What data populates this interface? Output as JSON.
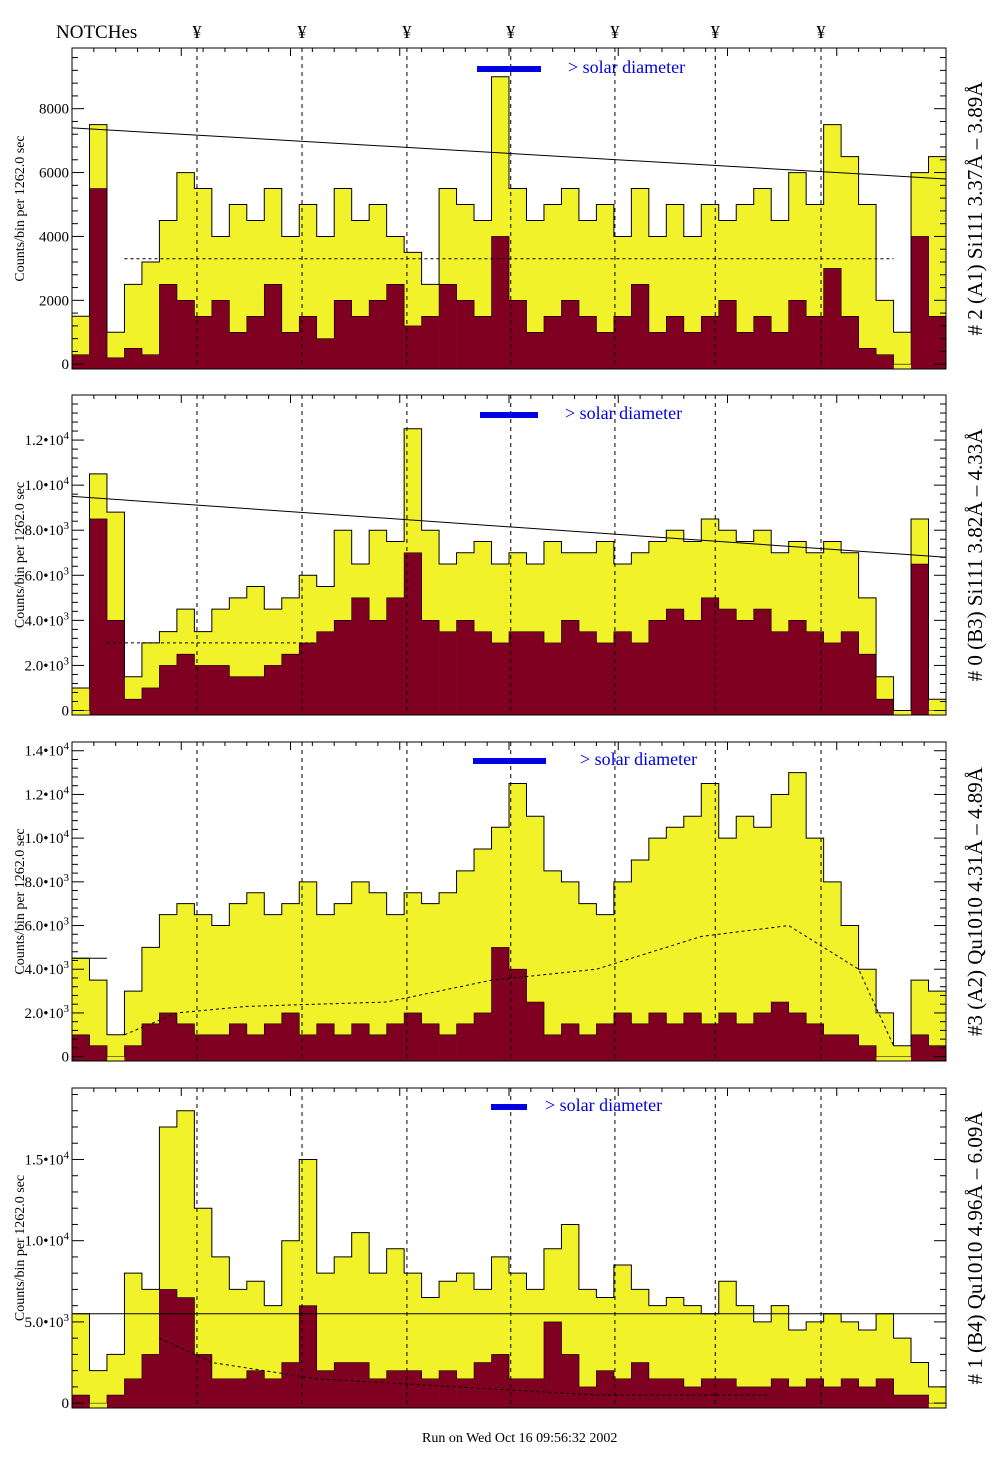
{
  "header": {
    "notches_label": "NOTCHes",
    "notch_symbol": "¥"
  },
  "footer": {
    "run_text": "Run on Wed Oct 16 09:56:32 2002"
  },
  "colors": {
    "total": "#f2f22a",
    "component": "#7f0020",
    "legend_bar": "#0000e0",
    "outline": "#000000"
  },
  "chart_data": [
    {
      "type": "bar",
      "title": "# 2 (A1) Si111  3.37Å – 3.89Å",
      "ylabel": "Counts/bin per   1262.0 sec",
      "legend": "> solar diameter",
      "ylim": [
        -150,
        9900
      ],
      "yticks": [
        {
          "v": 0,
          "l": "0"
        },
        {
          "v": 2000,
          "l": "2000"
        },
        {
          "v": 4000,
          "l": "4000"
        },
        {
          "v": 6000,
          "l": "6000"
        },
        {
          "v": 8000,
          "l": "8000"
        }
      ],
      "notches": [
        7.15,
        13.16,
        19.16,
        25.1,
        31.06,
        36.8,
        42.85
      ],
      "total": [
        1500,
        7500,
        1000,
        2500,
        3200,
        4500,
        6000,
        5500,
        4000,
        5000,
        4500,
        5500,
        4000,
        5000,
        4000,
        5500,
        4500,
        5000,
        4000,
        3500,
        2500,
        5500,
        5000,
        4500,
        9000,
        5500,
        4500,
        5000,
        5500,
        4500,
        5000,
        4000,
        5500,
        4000,
        5000,
        4000,
        5000,
        4500,
        5000,
        5500,
        4500,
        6000,
        5000,
        7500,
        6500,
        5000,
        2000,
        1000,
        6000,
        6500
      ],
      "component": [
        300,
        5500,
        200,
        500,
        300,
        2500,
        2000,
        1500,
        2000,
        1000,
        1500,
        2500,
        1000,
        1500,
        800,
        2000,
        1500,
        2000,
        2500,
        1200,
        1500,
        2500,
        2000,
        1500,
        4000,
        2000,
        1000,
        1500,
        2000,
        1500,
        1000,
        1500,
        2500,
        1000,
        1500,
        1000,
        1500,
        2000,
        1000,
        1500,
        1000,
        2000,
        1500,
        3000,
        1500,
        500,
        300,
        0,
        4000,
        1500
      ],
      "fit_solid": [
        [
          0,
          7400
        ],
        [
          50,
          5800
        ]
      ],
      "fit_dashed": [
        [
          3,
          3300
        ],
        [
          47,
          3300
        ]
      ]
    },
    {
      "type": "bar",
      "title": "# 0 (B3) Si111  3.82Å – 4.33Å",
      "ylabel": "Counts/bin per   1262.0 sec",
      "legend": "> solar diameter",
      "ylim": [
        -200,
        14000
      ],
      "yticks": [
        {
          "v": 0,
          "l": "0"
        },
        {
          "v": 2000,
          "l": "2.0•10^3"
        },
        {
          "v": 4000,
          "l": "4.0•10^3"
        },
        {
          "v": 6000,
          "l": "6.0•10^3"
        },
        {
          "v": 8000,
          "l": "8.0•10^3"
        },
        {
          "v": 10000,
          "l": "1.0•10^4"
        },
        {
          "v": 12000,
          "l": "1.2•10^4"
        }
      ],
      "notches": [
        7.15,
        13.16,
        19.16,
        25.1,
        31.06,
        36.8,
        42.85
      ],
      "total": [
        1000,
        10500,
        8800,
        1500,
        3000,
        3500,
        4500,
        3500,
        4500,
        5000,
        5500,
        4500,
        5000,
        6000,
        5500,
        8000,
        6500,
        8000,
        7500,
        12500,
        8000,
        6500,
        7000,
        7500,
        6500,
        7000,
        6500,
        7500,
        7000,
        7000,
        7500,
        6500,
        7000,
        7500,
        8000,
        7500,
        8500,
        8000,
        7500,
        8000,
        7000,
        7500,
        7000,
        7500,
        7000,
        5000,
        1500,
        0,
        8500,
        500
      ],
      "component": [
        0,
        8500,
        4000,
        500,
        1000,
        2000,
        2500,
        2000,
        2000,
        1500,
        1500,
        2000,
        2500,
        3000,
        3500,
        4000,
        5000,
        4000,
        5000,
        7000,
        4000,
        3500,
        4000,
        3500,
        3000,
        3500,
        3500,
        3000,
        4000,
        3500,
        3000,
        3500,
        3000,
        4000,
        4500,
        4000,
        5000,
        4500,
        4000,
        4500,
        3500,
        4000,
        3500,
        3000,
        3500,
        2500,
        500,
        0,
        6500,
        0
      ],
      "fit_solid": [
        [
          0,
          9500
        ],
        [
          50,
          6800
        ]
      ],
      "fit_dashed": [
        [
          2,
          3000
        ],
        [
          14,
          3000
        ]
      ]
    },
    {
      "type": "bar",
      "title": "#3 (A2) Qu1010  4.31Å – 4.89Å",
      "ylabel": "Counts/bin per   1262.0 sec",
      "legend": "> solar diameter",
      "ylim": [
        -200,
        14400
      ],
      "yticks": [
        {
          "v": 0,
          "l": "0"
        },
        {
          "v": 2000,
          "l": "2.0•10^3"
        },
        {
          "v": 4000,
          "l": "4.0•10^3"
        },
        {
          "v": 6000,
          "l": "6.0•10^3"
        },
        {
          "v": 8000,
          "l": "8.0•10^3"
        },
        {
          "v": 10000,
          "l": "1.0•10^4"
        },
        {
          "v": 12000,
          "l": "1.2•10^4"
        },
        {
          "v": 14000,
          "l": "1.4•10^4"
        }
      ],
      "notches": [
        7.15,
        13.16,
        19.16,
        25.1,
        31.06,
        36.8,
        42.85
      ],
      "total": [
        4500,
        3500,
        1000,
        3000,
        5000,
        6500,
        7000,
        6500,
        6000,
        7000,
        7500,
        6500,
        7000,
        8000,
        6500,
        7000,
        8000,
        7500,
        6500,
        7500,
        7000,
        7500,
        8500,
        9500,
        10500,
        12500,
        11000,
        8500,
        8000,
        7000,
        6500,
        8000,
        9000,
        10000,
        10500,
        11000,
        12500,
        10000,
        11000,
        10500,
        12000,
        13000,
        10000,
        8000,
        6000,
        4000,
        2000,
        500,
        3500,
        3000
      ],
      "component": [
        1000,
        500,
        0,
        500,
        1500,
        2000,
        1500,
        1000,
        1000,
        1500,
        1000,
        1500,
        2000,
        1000,
        1500,
        1000,
        1500,
        1000,
        1500,
        2000,
        1500,
        1000,
        1500,
        2000,
        5000,
        4000,
        2500,
        1000,
        1500,
        1000,
        1500,
        2000,
        1500,
        2000,
        1500,
        2000,
        1500,
        2000,
        1500,
        2000,
        2500,
        2000,
        1500,
        1000,
        1000,
        500,
        0,
        0,
        1000,
        500
      ],
      "fit_solid": [
        [
          0,
          4500
        ],
        [
          2,
          4500
        ]
      ],
      "fit_dashed": [
        [
          3,
          1000
        ],
        [
          6,
          2000
        ],
        [
          10,
          2300
        ],
        [
          18,
          2500
        ],
        [
          24,
          3500
        ],
        [
          30,
          4000
        ],
        [
          36,
          5500
        ],
        [
          41,
          6000
        ],
        [
          45,
          4000
        ],
        [
          47,
          500
        ]
      ]
    },
    {
      "type": "bar",
      "title": "# 1 (B4) Qu1010 4.96Å – 6.09Å",
      "ylabel": "Counts/bin per   1262.0 sec",
      "legend": "> solar diameter",
      "ylim": [
        -300,
        19400
      ],
      "yticks": [
        {
          "v": 0,
          "l": "0"
        },
        {
          "v": 5000,
          "l": "5.0•10^3"
        },
        {
          "v": 10000,
          "l": "1.0•10^4"
        },
        {
          "v": 15000,
          "l": "1.5•10^4"
        }
      ],
      "notches": [
        7.15,
        13.16,
        19.16,
        25.1,
        31.06,
        36.8,
        42.85
      ],
      "total": [
        5500,
        2000,
        3000,
        8000,
        7000,
        17000,
        18000,
        12000,
        9000,
        7000,
        7500,
        6000,
        10000,
        15000,
        8000,
        9000,
        10500,
        8000,
        9500,
        8000,
        6500,
        7500,
        8000,
        7000,
        9000,
        8000,
        7000,
        9500,
        11000,
        7000,
        6500,
        8500,
        7000,
        6000,
        6500,
        6000,
        5500,
        7500,
        6000,
        5000,
        6000,
        4500,
        5000,
        5500,
        5000,
        4500,
        5500,
        4000,
        2500,
        1000
      ],
      "component": [
        500,
        0,
        500,
        1500,
        3000,
        7000,
        6500,
        3000,
        1500,
        1500,
        2000,
        1500,
        2500,
        6000,
        2000,
        2500,
        2500,
        1500,
        2000,
        2000,
        1500,
        2000,
        1500,
        2500,
        3000,
        1500,
        1500,
        5000,
        3000,
        1000,
        2000,
        1500,
        2500,
        1500,
        1500,
        1000,
        1500,
        1500,
        1000,
        1000,
        1500,
        1000,
        1500,
        1000,
        1500,
        1000,
        1500,
        500,
        500,
        0
      ],
      "fit_solid": [
        [
          0,
          5500
        ],
        [
          50,
          5500
        ]
      ],
      "fit_dashed": [
        [
          5,
          4000
        ],
        [
          8,
          2500
        ],
        [
          14,
          1500
        ],
        [
          30,
          500
        ],
        [
          40,
          500
        ]
      ]
    }
  ]
}
